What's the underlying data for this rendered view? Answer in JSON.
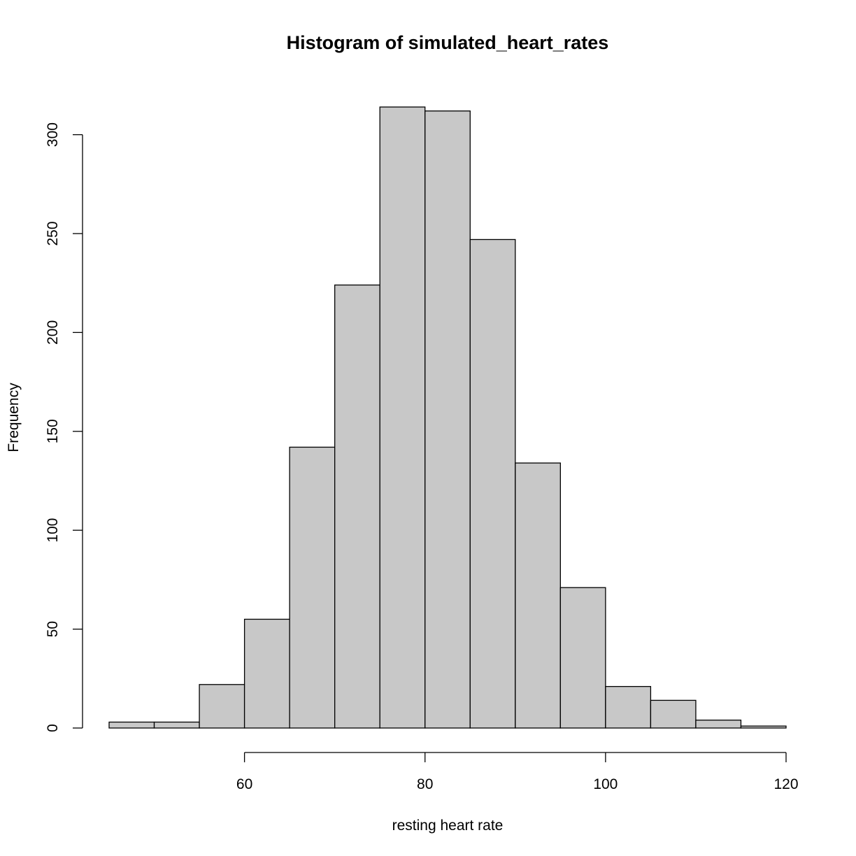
{
  "chart_data": {
    "type": "bar",
    "title": "Histogram of simulated_heart_rates",
    "xlabel": "resting heart rate",
    "ylabel": "Frequency",
    "bin_edges": [
      45,
      50,
      55,
      60,
      65,
      70,
      75,
      80,
      85,
      90,
      95,
      100,
      105,
      110,
      115,
      120
    ],
    "values": [
      3,
      3,
      22,
      55,
      142,
      224,
      314,
      312,
      247,
      134,
      71,
      21,
      14,
      4,
      1
    ],
    "xlim": [
      45,
      120
    ],
    "ylim": [
      0,
      314
    ],
    "x_ticks": [
      60,
      80,
      100,
      120
    ],
    "y_ticks": [
      0,
      50,
      100,
      150,
      200,
      250,
      300
    ],
    "bar_color": "#c8c8c8",
    "grid": false,
    "legend": "none"
  }
}
